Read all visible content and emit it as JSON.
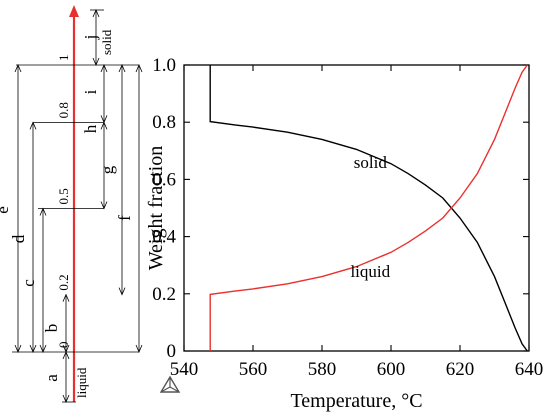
{
  "chart_data": [
    {
      "type": "diagram",
      "panel": "scale-bar",
      "scale_ticks": [
        {
          "label": "0",
          "value": 0
        },
        {
          "label": "0.2",
          "value": 0.2
        },
        {
          "label": "0.5",
          "value": 0.5
        },
        {
          "label": "0.8",
          "value": 0.8
        },
        {
          "label": "1",
          "value": 1
        }
      ],
      "phase_labels": {
        "bottom": "liquid",
        "top": "solid"
      },
      "segment_labels": [
        "a",
        "b",
        "c",
        "d",
        "e",
        "f",
        "g",
        "h",
        "i",
        "j"
      ]
    },
    {
      "type": "line",
      "panel": "weight-fraction",
      "xlabel": "Temperature, °C",
      "ylabel": "Weight fraction",
      "xlim": [
        540,
        640
      ],
      "ylim": [
        0,
        1
      ],
      "xticks": [
        540,
        560,
        580,
        600,
        620,
        640
      ],
      "yticks": [
        "0",
        "0.2",
        "0.4",
        "0.6",
        "0.8",
        "1.0"
      ],
      "series": [
        {
          "name": "solid",
          "color": "#000000",
          "x": [
            547.6,
            547.6,
            547.6,
            555,
            560,
            570,
            580,
            590,
            600,
            605,
            610,
            615,
            620,
            625,
            630,
            633,
            636,
            638,
            639.5
          ],
          "y": [
            1.0,
            0.805,
            0.802,
            0.79,
            0.783,
            0.765,
            0.74,
            0.705,
            0.655,
            0.62,
            0.58,
            0.535,
            0.465,
            0.38,
            0.26,
            0.17,
            0.08,
            0.025,
            0.0
          ]
        },
        {
          "name": "liquid",
          "color": "#e8312f",
          "x": [
            547.6,
            547.6,
            547.6,
            555,
            560,
            570,
            580,
            590,
            600,
            605,
            610,
            615,
            620,
            625,
            630,
            633,
            636,
            638,
            639.5
          ],
          "y": [
            0.0,
            0.195,
            0.198,
            0.21,
            0.217,
            0.235,
            0.26,
            0.295,
            0.345,
            0.38,
            0.42,
            0.465,
            0.535,
            0.62,
            0.74,
            0.83,
            0.92,
            0.975,
            1.0
          ]
        }
      ],
      "curve_labels": [
        {
          "text": "solid",
          "x": 594,
          "y": 0.66
        },
        {
          "text": "liquid",
          "x": 594,
          "y": 0.28
        }
      ]
    }
  ]
}
